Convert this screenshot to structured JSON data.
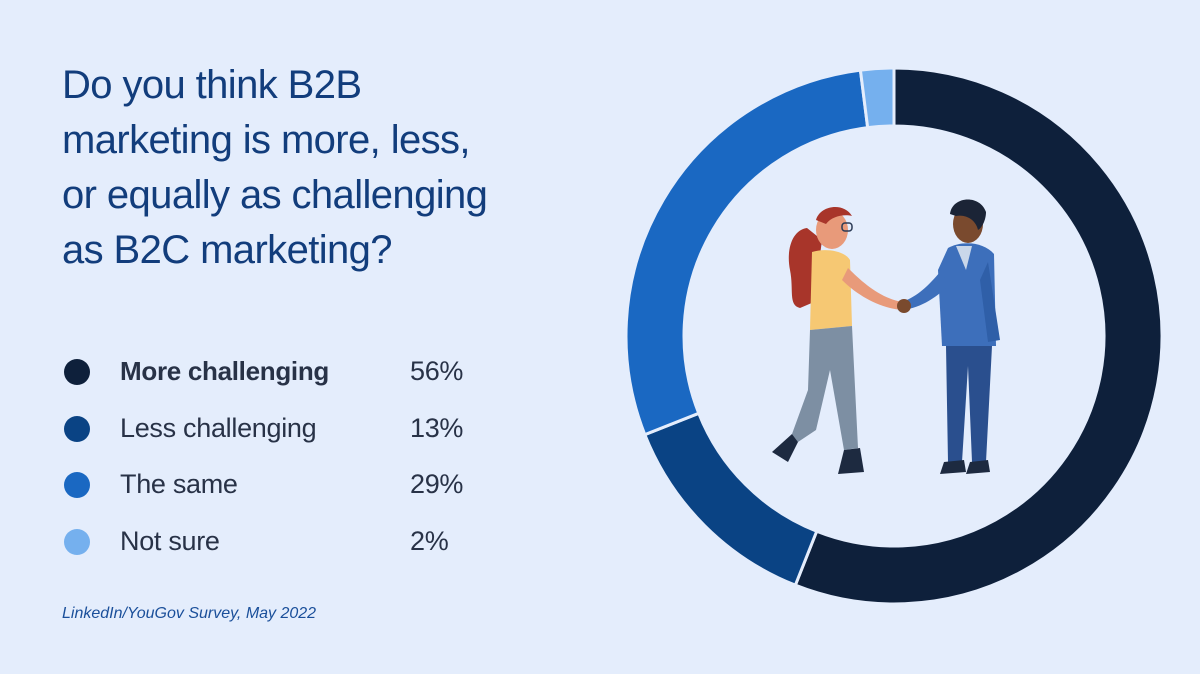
{
  "title": "Do you think B2B\nmarketing is more, less,\nor equally as challenging\nas B2C marketing?",
  "source": "LinkedIn/YouGov Survey, May 2022",
  "legend": [
    {
      "label": "More challenging",
      "value": "56%",
      "color": "#0e203b"
    },
    {
      "label": "Less challenging",
      "value": "13%",
      "color": "#0a4384"
    },
    {
      "label": "The same",
      "value": "29%",
      "color": "#1a68c2"
    },
    {
      "label": "Not sure",
      "value": "2%",
      "color": "#75b0ee"
    }
  ],
  "illustration": "two-people-shaking-hands",
  "chart_data": {
    "type": "pie",
    "style": "donut",
    "categories": [
      "More challenging",
      "Less challenging",
      "The same",
      "Not sure"
    ],
    "values": [
      56,
      13,
      29,
      2
    ],
    "unit": "%",
    "colors": [
      "#0e203b",
      "#0a4384",
      "#1a68c2",
      "#75b0ee"
    ],
    "title": "Do you think B2B marketing is more, less, or equally as challenging as B2C marketing?",
    "legend_position": "left"
  }
}
